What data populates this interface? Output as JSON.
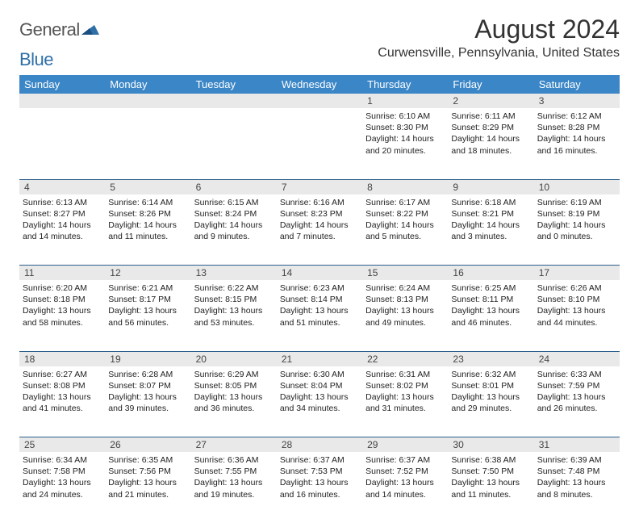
{
  "brand": {
    "part1": "General",
    "part2": "Blue"
  },
  "title": "August 2024",
  "location": "Curwensville, Pennsylvania, United States",
  "colors": {
    "header_bg": "#3b86c6",
    "header_text": "#ffffff",
    "daynum_bg": "#e9e9e9",
    "rule": "#2c5f8d",
    "logo_gray": "#555555",
    "logo_blue": "#2f6fa7"
  },
  "weekdays": [
    "Sunday",
    "Monday",
    "Tuesday",
    "Wednesday",
    "Thursday",
    "Friday",
    "Saturday"
  ],
  "weeks": [
    {
      "nums": [
        "",
        "",
        "",
        "",
        "1",
        "2",
        "3"
      ],
      "cells": [
        null,
        null,
        null,
        null,
        {
          "sunrise": "Sunrise: 6:10 AM",
          "sunset": "Sunset: 8:30 PM",
          "daylight": "Daylight: 14 hours and 20 minutes."
        },
        {
          "sunrise": "Sunrise: 6:11 AM",
          "sunset": "Sunset: 8:29 PM",
          "daylight": "Daylight: 14 hours and 18 minutes."
        },
        {
          "sunrise": "Sunrise: 6:12 AM",
          "sunset": "Sunset: 8:28 PM",
          "daylight": "Daylight: 14 hours and 16 minutes."
        }
      ]
    },
    {
      "nums": [
        "4",
        "5",
        "6",
        "7",
        "8",
        "9",
        "10"
      ],
      "cells": [
        {
          "sunrise": "Sunrise: 6:13 AM",
          "sunset": "Sunset: 8:27 PM",
          "daylight": "Daylight: 14 hours and 14 minutes."
        },
        {
          "sunrise": "Sunrise: 6:14 AM",
          "sunset": "Sunset: 8:26 PM",
          "daylight": "Daylight: 14 hours and 11 minutes."
        },
        {
          "sunrise": "Sunrise: 6:15 AM",
          "sunset": "Sunset: 8:24 PM",
          "daylight": "Daylight: 14 hours and 9 minutes."
        },
        {
          "sunrise": "Sunrise: 6:16 AM",
          "sunset": "Sunset: 8:23 PM",
          "daylight": "Daylight: 14 hours and 7 minutes."
        },
        {
          "sunrise": "Sunrise: 6:17 AM",
          "sunset": "Sunset: 8:22 PM",
          "daylight": "Daylight: 14 hours and 5 minutes."
        },
        {
          "sunrise": "Sunrise: 6:18 AM",
          "sunset": "Sunset: 8:21 PM",
          "daylight": "Daylight: 14 hours and 3 minutes."
        },
        {
          "sunrise": "Sunrise: 6:19 AM",
          "sunset": "Sunset: 8:19 PM",
          "daylight": "Daylight: 14 hours and 0 minutes."
        }
      ]
    },
    {
      "nums": [
        "11",
        "12",
        "13",
        "14",
        "15",
        "16",
        "17"
      ],
      "cells": [
        {
          "sunrise": "Sunrise: 6:20 AM",
          "sunset": "Sunset: 8:18 PM",
          "daylight": "Daylight: 13 hours and 58 minutes."
        },
        {
          "sunrise": "Sunrise: 6:21 AM",
          "sunset": "Sunset: 8:17 PM",
          "daylight": "Daylight: 13 hours and 56 minutes."
        },
        {
          "sunrise": "Sunrise: 6:22 AM",
          "sunset": "Sunset: 8:15 PM",
          "daylight": "Daylight: 13 hours and 53 minutes."
        },
        {
          "sunrise": "Sunrise: 6:23 AM",
          "sunset": "Sunset: 8:14 PM",
          "daylight": "Daylight: 13 hours and 51 minutes."
        },
        {
          "sunrise": "Sunrise: 6:24 AM",
          "sunset": "Sunset: 8:13 PM",
          "daylight": "Daylight: 13 hours and 49 minutes."
        },
        {
          "sunrise": "Sunrise: 6:25 AM",
          "sunset": "Sunset: 8:11 PM",
          "daylight": "Daylight: 13 hours and 46 minutes."
        },
        {
          "sunrise": "Sunrise: 6:26 AM",
          "sunset": "Sunset: 8:10 PM",
          "daylight": "Daylight: 13 hours and 44 minutes."
        }
      ]
    },
    {
      "nums": [
        "18",
        "19",
        "20",
        "21",
        "22",
        "23",
        "24"
      ],
      "cells": [
        {
          "sunrise": "Sunrise: 6:27 AM",
          "sunset": "Sunset: 8:08 PM",
          "daylight": "Daylight: 13 hours and 41 minutes."
        },
        {
          "sunrise": "Sunrise: 6:28 AM",
          "sunset": "Sunset: 8:07 PM",
          "daylight": "Daylight: 13 hours and 39 minutes."
        },
        {
          "sunrise": "Sunrise: 6:29 AM",
          "sunset": "Sunset: 8:05 PM",
          "daylight": "Daylight: 13 hours and 36 minutes."
        },
        {
          "sunrise": "Sunrise: 6:30 AM",
          "sunset": "Sunset: 8:04 PM",
          "daylight": "Daylight: 13 hours and 34 minutes."
        },
        {
          "sunrise": "Sunrise: 6:31 AM",
          "sunset": "Sunset: 8:02 PM",
          "daylight": "Daylight: 13 hours and 31 minutes."
        },
        {
          "sunrise": "Sunrise: 6:32 AM",
          "sunset": "Sunset: 8:01 PM",
          "daylight": "Daylight: 13 hours and 29 minutes."
        },
        {
          "sunrise": "Sunrise: 6:33 AM",
          "sunset": "Sunset: 7:59 PM",
          "daylight": "Daylight: 13 hours and 26 minutes."
        }
      ]
    },
    {
      "nums": [
        "25",
        "26",
        "27",
        "28",
        "29",
        "30",
        "31"
      ],
      "cells": [
        {
          "sunrise": "Sunrise: 6:34 AM",
          "sunset": "Sunset: 7:58 PM",
          "daylight": "Daylight: 13 hours and 24 minutes."
        },
        {
          "sunrise": "Sunrise: 6:35 AM",
          "sunset": "Sunset: 7:56 PM",
          "daylight": "Daylight: 13 hours and 21 minutes."
        },
        {
          "sunrise": "Sunrise: 6:36 AM",
          "sunset": "Sunset: 7:55 PM",
          "daylight": "Daylight: 13 hours and 19 minutes."
        },
        {
          "sunrise": "Sunrise: 6:37 AM",
          "sunset": "Sunset: 7:53 PM",
          "daylight": "Daylight: 13 hours and 16 minutes."
        },
        {
          "sunrise": "Sunrise: 6:37 AM",
          "sunset": "Sunset: 7:52 PM",
          "daylight": "Daylight: 13 hours and 14 minutes."
        },
        {
          "sunrise": "Sunrise: 6:38 AM",
          "sunset": "Sunset: 7:50 PM",
          "daylight": "Daylight: 13 hours and 11 minutes."
        },
        {
          "sunrise": "Sunrise: 6:39 AM",
          "sunset": "Sunset: 7:48 PM",
          "daylight": "Daylight: 13 hours and 8 minutes."
        }
      ]
    }
  ]
}
